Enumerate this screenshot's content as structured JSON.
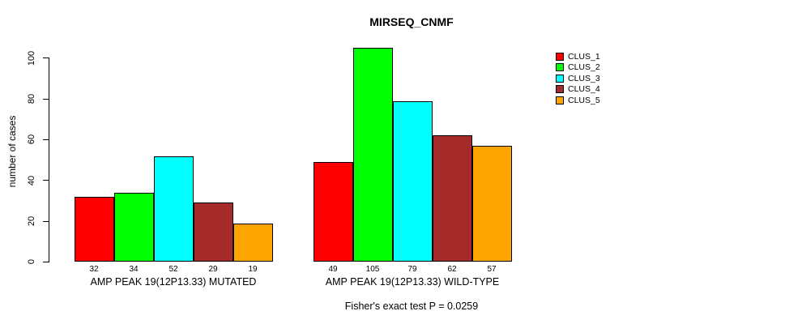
{
  "chart_data": {
    "type": "bar",
    "title": "MIRSEQ_CNMF",
    "ylabel": "number of cases",
    "xlabel": "",
    "subtitle": "Fisher's exact test P = 0.0259",
    "categories": [
      "AMP PEAK 19(12P13.33) MUTATED",
      "AMP PEAK 19(12P13.33) WILD-TYPE"
    ],
    "series": [
      {
        "name": "CLUS_1",
        "color": "#FF0000",
        "values": [
          32,
          49
        ]
      },
      {
        "name": "CLUS_2",
        "color": "#00FF00",
        "values": [
          34,
          105
        ]
      },
      {
        "name": "CLUS_3",
        "color": "#00FFFF",
        "values": [
          52,
          79
        ]
      },
      {
        "name": "CLUS_4",
        "color": "#A52A2A",
        "values": [
          29,
          62
        ]
      },
      {
        "name": "CLUS_5",
        "color": "#FFA500",
        "values": [
          19,
          57
        ]
      }
    ],
    "bar_value_labels": [
      [
        32,
        34,
        52,
        29,
        19
      ],
      [
        49,
        105,
        79,
        62,
        57
      ]
    ],
    "yticks": [
      0,
      20,
      40,
      60,
      80,
      100
    ],
    "ylim": [
      0,
      100
    ],
    "grid": false,
    "legend_position": "top-right",
    "bar_border_color": "#000000",
    "background_color": "#FFFFFF"
  }
}
